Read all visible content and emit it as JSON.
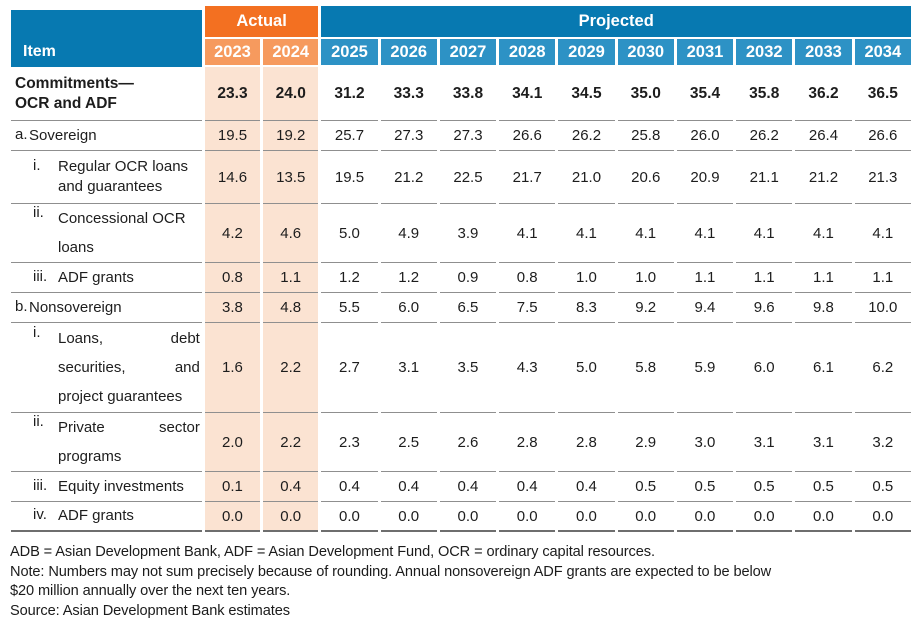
{
  "table": {
    "item_header": "Item",
    "group_headers": {
      "actual": "Actual",
      "projected": "Projected"
    },
    "actual_years": [
      "2023",
      "2024"
    ],
    "projected_years": [
      "2025",
      "2026",
      "2027",
      "2028",
      "2029",
      "2030",
      "2031",
      "2032",
      "2033",
      "2034"
    ],
    "rows": [
      {
        "name": "commitments-ocr-and-adf",
        "prefix": "",
        "level": 0,
        "bold": true,
        "lines": [
          [
            "Commitments—"
          ],
          [
            "OCR and ADF"
          ]
        ],
        "values": [
          "23.3",
          "24.0",
          "31.2",
          "33.3",
          "33.8",
          "34.1",
          "34.5",
          "35.0",
          "35.4",
          "35.8",
          "36.2",
          "36.5"
        ]
      },
      {
        "name": "sovereign",
        "prefix": "a.",
        "level": 1,
        "bold": false,
        "lines": [
          [
            "Sovereign"
          ]
        ],
        "values": [
          "19.5",
          "19.2",
          "25.7",
          "27.3",
          "27.3",
          "26.6",
          "26.2",
          "25.8",
          "26.0",
          "26.2",
          "26.4",
          "26.6"
        ]
      },
      {
        "name": "regular-ocr-loans-and-guarantees",
        "prefix": "i.",
        "level": 2,
        "bold": false,
        "lines": [
          [
            "Regular OCR loans"
          ],
          [
            "and guarantees"
          ]
        ],
        "values": [
          "14.6",
          "13.5",
          "19.5",
          "21.2",
          "22.5",
          "21.7",
          "21.0",
          "20.6",
          "20.9",
          "21.1",
          "21.2",
          "21.3"
        ]
      },
      {
        "name": "concessional-ocr-loans",
        "prefix": "ii.",
        "level": 2,
        "bold": false,
        "lines": [
          [
            "Concessional OCR"
          ],
          [
            "loans"
          ]
        ],
        "values": [
          "4.2",
          "4.6",
          "5.0",
          "4.9",
          "3.9",
          "4.1",
          "4.1",
          "4.1",
          "4.1",
          "4.1",
          "4.1",
          "4.1"
        ]
      },
      {
        "name": "adf-grants-sovereign",
        "prefix": "iii.",
        "level": 2,
        "bold": false,
        "lines": [
          [
            "ADF grants"
          ]
        ],
        "values": [
          "0.8",
          "1.1",
          "1.2",
          "1.2",
          "0.9",
          "0.8",
          "1.0",
          "1.0",
          "1.1",
          "1.1",
          "1.1",
          "1.1"
        ]
      },
      {
        "name": "nonsovereign",
        "prefix": "b.",
        "level": 1,
        "bold": false,
        "lines": [
          [
            "Nonsovereign"
          ]
        ],
        "values": [
          "3.8",
          "4.8",
          "5.5",
          "6.0",
          "6.5",
          "7.5",
          "8.3",
          "9.2",
          "9.4",
          "9.6",
          "9.8",
          "10.0"
        ]
      },
      {
        "name": "loans-debt-securities-and-project-guarantees",
        "prefix": "i.",
        "level": 2,
        "bold": false,
        "lines": [
          [
            "Loans,",
            "debt"
          ],
          [
            "securities,",
            "and"
          ],
          [
            "project guarantees"
          ]
        ],
        "values": [
          "1.6",
          "2.2",
          "2.7",
          "3.1",
          "3.5",
          "4.3",
          "5.0",
          "5.8",
          "5.9",
          "6.0",
          "6.1",
          "6.2"
        ]
      },
      {
        "name": "private-sector-programs",
        "prefix": "ii.",
        "level": 2,
        "bold": false,
        "lines": [
          [
            "Private",
            "sector"
          ],
          [
            "programs"
          ]
        ],
        "values": [
          "2.0",
          "2.2",
          "2.3",
          "2.5",
          "2.6",
          "2.8",
          "2.8",
          "2.9",
          "3.0",
          "3.1",
          "3.1",
          "3.2"
        ]
      },
      {
        "name": "equity-investments",
        "prefix": "iii.",
        "level": 2,
        "bold": false,
        "lines": [
          [
            "Equity investments"
          ]
        ],
        "values": [
          "0.1",
          "0.4",
          "0.4",
          "0.4",
          "0.4",
          "0.4",
          "0.4",
          "0.5",
          "0.5",
          "0.5",
          "0.5",
          "0.5"
        ]
      },
      {
        "name": "adf-grants-nonsovereign",
        "prefix": "iv.",
        "level": 2,
        "bold": false,
        "lines": [
          [
            "ADF grants"
          ]
        ],
        "values": [
          "0.0",
          "0.0",
          "0.0",
          "0.0",
          "0.0",
          "0.0",
          "0.0",
          "0.0",
          "0.0",
          "0.0",
          "0.0",
          "0.0"
        ]
      }
    ]
  },
  "footnotes": [
    "ADB = Asian Development Bank, ADF = Asian Development Fund, OCR = ordinary capital resources.",
    "Note: Numbers may not sum precisely because of rounding. Annual nonsovereign ADF grants are expected to be below",
    "$20 million annually over the next ten years.",
    "Source: Asian Development Bank estimates"
  ],
  "colors": {
    "header_blue": "#0779B1",
    "year_blue": "#2D92C5",
    "actual_orange": "#F37021",
    "year_orange": "#F69A5E",
    "actual_column_tint": "#FBE3D2",
    "row_rule_gray": "#8F8F8F"
  }
}
